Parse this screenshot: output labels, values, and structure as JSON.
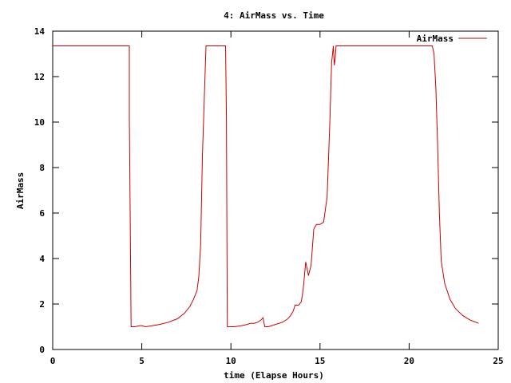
{
  "chart_data": {
    "type": "line",
    "title": "4: AirMass vs. Time",
    "xlabel": "time (Elapse Hours)",
    "ylabel": "AirMass",
    "xlim": [
      0,
      25
    ],
    "ylim": [
      0,
      14
    ],
    "x_ticks": [
      "0",
      "5",
      "10",
      "15",
      "20",
      "25"
    ],
    "y_ticks": [
      "0",
      "2",
      "4",
      "6",
      "8",
      "10",
      "12",
      "14"
    ],
    "grid": false,
    "legend_position": "top-right",
    "colors": {
      "series": "#cc0000",
      "frame": "#000000"
    },
    "series": [
      {
        "name": "AirMass",
        "x": [
          0,
          4.3,
          4.3,
          4.4,
          4.6,
          4.9,
          5.0,
          5.2,
          5.6,
          6.0,
          6.5,
          7.0,
          7.4,
          7.7,
          7.9,
          8.1,
          8.2,
          8.3,
          8.4,
          8.6,
          9.7,
          9.75,
          9.8,
          10.2,
          10.6,
          10.9,
          11.1,
          11.3,
          11.5,
          11.7,
          11.8,
          11.9,
          12.1,
          12.5,
          12.9,
          13.2,
          13.4,
          13.5,
          13.6,
          13.8,
          13.95,
          14.05,
          14.1,
          14.2,
          14.35,
          14.5,
          14.65,
          14.8,
          15.0,
          15.2,
          15.4,
          15.55,
          15.65,
          15.75,
          15.8,
          15.85,
          15.9,
          16.0,
          16.2,
          17.0,
          19.0,
          21.0,
          21.3,
          21.4,
          21.5,
          21.6,
          21.7,
          21.8,
          22.0,
          22.3,
          22.6,
          23.0,
          23.4,
          23.9
        ],
        "y": [
          13.35,
          13.35,
          10.3,
          1.0,
          1.0,
          1.05,
          1.05,
          1.0,
          1.05,
          1.1,
          1.2,
          1.35,
          1.6,
          1.9,
          2.2,
          2.6,
          3.2,
          4.6,
          8.5,
          13.35,
          13.35,
          10.2,
          1.0,
          1.0,
          1.05,
          1.1,
          1.15,
          1.15,
          1.2,
          1.3,
          1.4,
          1.0,
          1.0,
          1.1,
          1.2,
          1.35,
          1.55,
          1.7,
          1.95,
          1.95,
          2.1,
          2.6,
          3.0,
          3.85,
          3.25,
          3.7,
          5.3,
          5.5,
          5.5,
          5.6,
          6.7,
          10.0,
          12.6,
          13.35,
          12.5,
          12.8,
          13.35,
          13.35,
          13.35,
          13.35,
          13.35,
          13.35,
          13.35,
          13.0,
          11.5,
          9.0,
          6.0,
          3.9,
          2.9,
          2.2,
          1.8,
          1.5,
          1.3,
          1.15
        ]
      }
    ]
  }
}
